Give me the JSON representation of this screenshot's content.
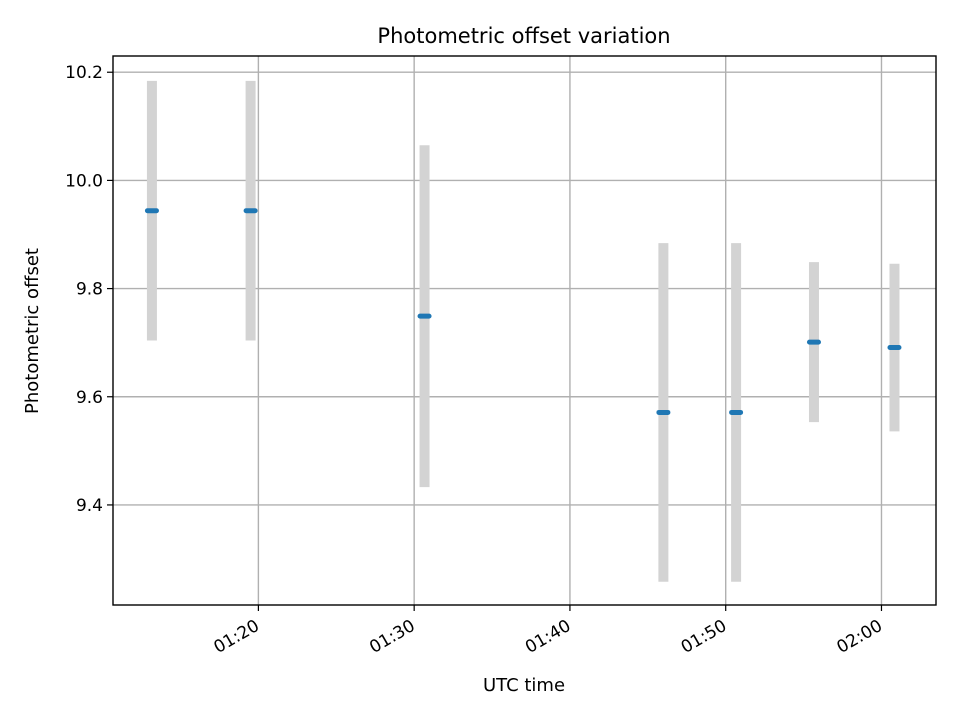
{
  "chart_data": {
    "type": "scatter",
    "title": "Photometric offset variation",
    "xlabel": "UTC time",
    "ylabel": "Photometric offset",
    "x_ticks": [
      "01:20",
      "01:30",
      "01:40",
      "01:50",
      "02:00"
    ],
    "y_ticks": [
      "9.4",
      "9.6",
      "9.8",
      "10.0",
      "10.2"
    ],
    "xlim": [
      "01:10:40",
      "02:03:30"
    ],
    "ylim": [
      9.215,
      10.23
    ],
    "grid": true,
    "legend": "none",
    "points": [
      {
        "x": "01:13:10",
        "y": 9.944,
        "err": 0.24
      },
      {
        "x": "01:19:30",
        "y": 9.944,
        "err": 0.24
      },
      {
        "x": "01:30:40",
        "y": 9.749,
        "err": 0.316
      },
      {
        "x": "01:46:00",
        "y": 9.571,
        "err": 0.313
      },
      {
        "x": "01:50:40",
        "y": 9.571,
        "err": 0.313
      },
      {
        "x": "01:55:40",
        "y": 9.701,
        "err": 0.148
      },
      {
        "x": "02:00:50",
        "y": 9.691,
        "err": 0.155
      }
    ],
    "marker_color": "#1f77b4",
    "errorbar_color": "#d3d3d3"
  }
}
